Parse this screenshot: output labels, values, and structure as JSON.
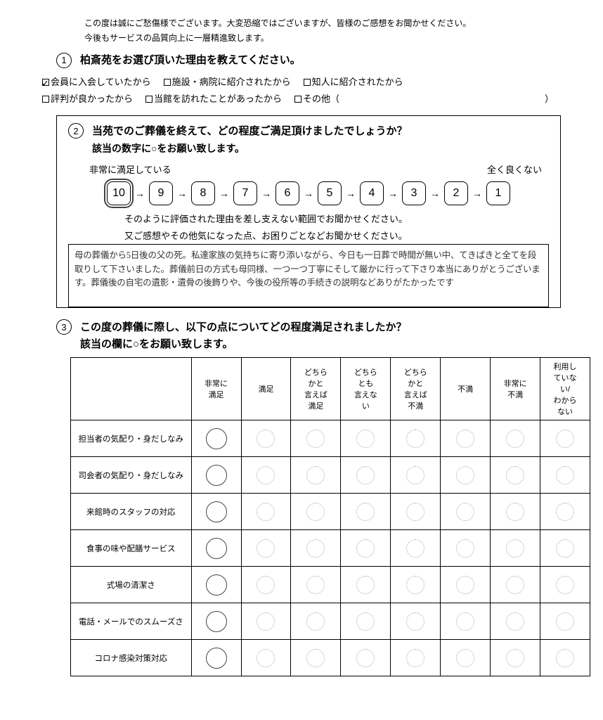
{
  "intro_line1": "この度は誠にご愁傷様でございます。大変恐縮ではございますが、皆様のご感想をお聞かせください。",
  "intro_line2": "今後もサービスの品質向上に一層精進致します。",
  "q1": {
    "num": "①",
    "title": "柏斎苑をお選び頂いた理由を教えてください。",
    "options": [
      {
        "label": "会員に入会していたから",
        "checked": true
      },
      {
        "label": "施設・病院に紹介されたから",
        "checked": false
      },
      {
        "label": "知人に紹介されたから",
        "checked": false
      },
      {
        "label": "評判が良かったから",
        "checked": false
      },
      {
        "label": "当館を訪れたことがあったから",
        "checked": false
      },
      {
        "label": "その他（",
        "checked": false
      }
    ],
    "close_paren": "）"
  },
  "q2": {
    "num": "②",
    "title": "当苑でのご葬儀を終えて、どの程度ご満足頂けましたでしょうか？",
    "sub": "該当の数字に○をお願い致します。",
    "left_label": "非常に満足している",
    "right_label": "全く良くない",
    "scale": [
      "10",
      "9",
      "8",
      "7",
      "6",
      "5",
      "4",
      "3",
      "2",
      "1"
    ],
    "selected": "10",
    "reason1": "そのように評価された理由を差し支えない範囲でお聞かせください。",
    "reason2": "又ご感想やその他気になった点、お困りごとなどお聞かせください。",
    "freeform": "母の葬儀から5日後の父の死。私達家族の気持ちに寄り添いながら、今日も一日葬で時間が無い中、てきぱきと全てを段取りして下さいました。葬儀前日の方式も母同様、一つ一つ丁寧にそして厳かに行って下さり本当にありがとうございます。葬儀後の自宅の遺影・遺骨の後飾りや、今後の役所等の手続きの説明などありがたかったです"
  },
  "q3": {
    "num": "③",
    "title_l1": "この度の葬儀に際し、以下の点についてどの程度満足されましたか？",
    "title_l2": "該当の欄に○をお願い致します。",
    "columns": [
      "非常に\n満足",
      "満足",
      "どちら\nかと\n言えば\n満足",
      "どちら\nとも\n言えな\nい",
      "どちら\nかと\n言えば\n不満",
      "不満",
      "非常に\n不満",
      "利用し\nていな\nい/\nわから\nない"
    ],
    "rows": [
      "担当者の気配り・身だしなみ",
      "司会者の気配り・身だしなみ",
      "来館時のスタッフの対応",
      "食事の味や配膳サービス",
      "式場の清潔さ",
      "電話・メールでのスムーズさ",
      "コロナ感染対策対応"
    ],
    "selected_col": 0
  }
}
